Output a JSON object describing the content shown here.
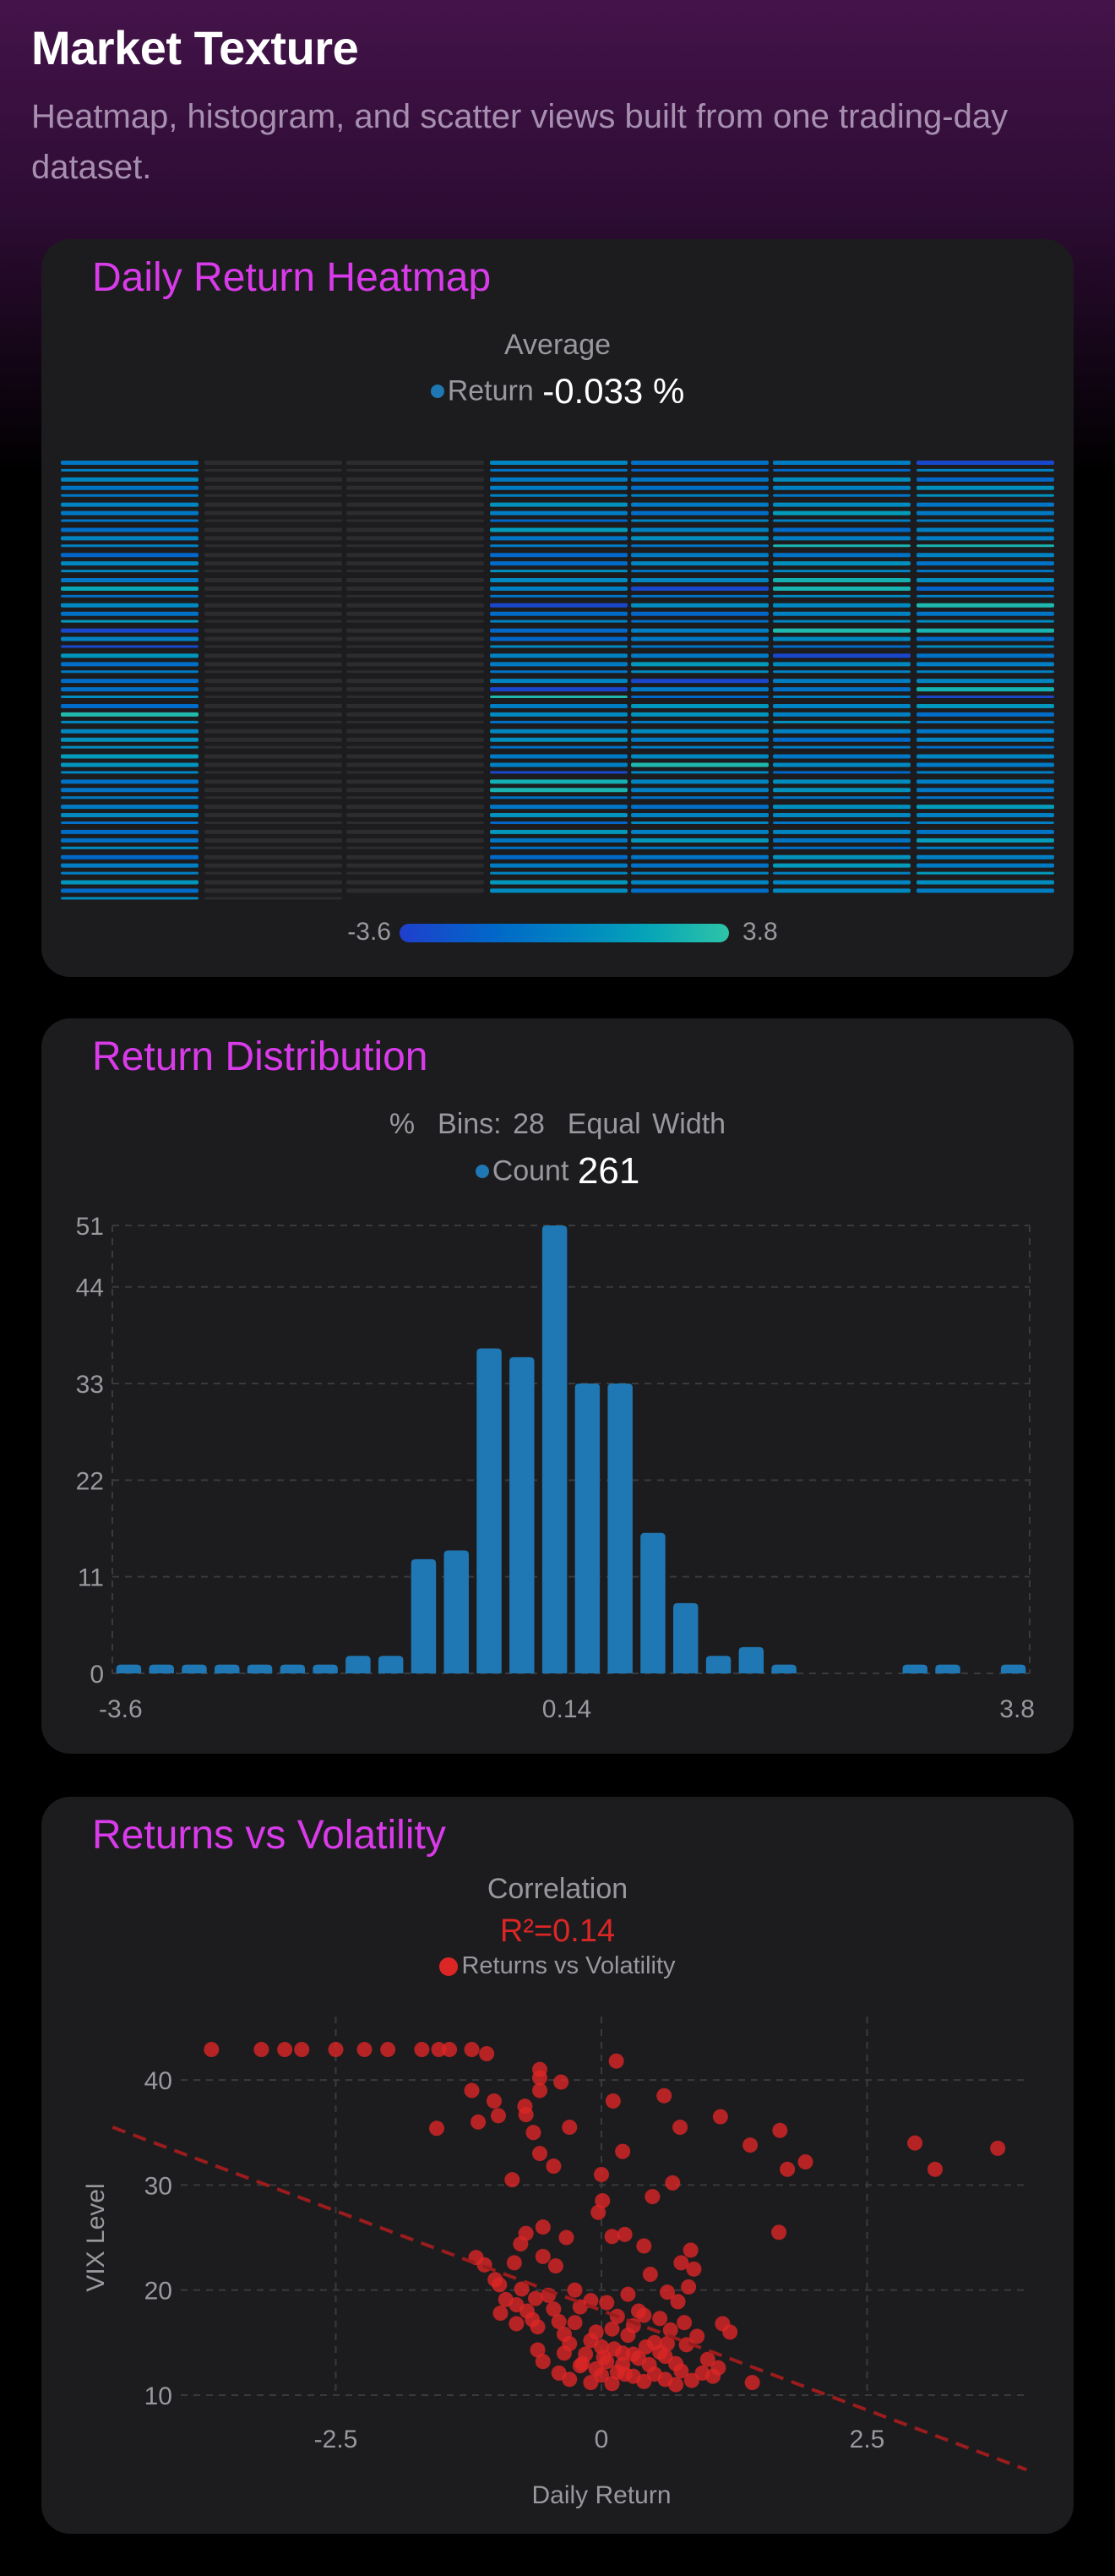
{
  "header": {
    "title": "Market Texture",
    "subtitle": "Heatmap, histogram, and scatter views built from one trading-day dataset."
  },
  "heatmap_card": {
    "title": "Daily Return Heatmap",
    "stat_label": "Average",
    "legend_label": "Return",
    "stat_value": "-0.033 %",
    "legend_color": "#1f77b4",
    "colorbar": {
      "min_label": "-3.6",
      "max_label": "3.8",
      "start_color": "#1f3fcc",
      "mid_color": "#0077c2",
      "end_color": "#2ec4a8"
    },
    "empty_color": "#2c2c2e"
  },
  "histogram_card": {
    "title": "Return Distribution",
    "subtitle": "%  Bins: 28  Equal Width",
    "legend_label": "Count",
    "legend_value": "261",
    "legend_color": "#1f77b4"
  },
  "scatter_card": {
    "title": "Returns vs Volatility",
    "stat_label": "Correlation",
    "r2_label": "R²=0.14",
    "legend_label": "Returns vs Volatility",
    "point_color": "#dc2626",
    "trend_color": "#9b1c1c"
  },
  "chart_data": [
    {
      "type": "heatmap",
      "title": "Daily Return Heatmap",
      "subtitle": "Average Return -0.033 %",
      "columns": 7,
      "rows_per_column": 53,
      "empty_columns": [
        2,
        3
      ],
      "value_range": [
        -3.6,
        3.8
      ],
      "colorbar_labels": [
        "-3.6",
        "3.8"
      ],
      "note": "Each column is a stack of horizontal day-bars colored by daily return; columns 2 and 3 have no data (gray). Most cells fall in -1 to +1 (mid-blue); a few teal highlights (~+2.5 to +3.8) and deep-blue lows (~-3)."
    },
    {
      "type": "bar",
      "title": "Return Distribution",
      "subtitle": "%  Bins: 28  Equal Width",
      "legend": [
        "Count"
      ],
      "total": 261,
      "x_range": [
        -3.6,
        3.8
      ],
      "x_tick_labels": [
        "-3.6",
        "0.14",
        "3.8"
      ],
      "y_ticks": [
        0,
        11,
        22,
        33,
        44,
        51
      ],
      "ylim": [
        0,
        51
      ],
      "grid": true,
      "values": [
        1,
        1,
        1,
        1,
        1,
        1,
        1,
        2,
        2,
        13,
        14,
        37,
        36,
        51,
        33,
        33,
        16,
        8,
        2,
        3,
        1,
        0,
        0,
        0,
        1,
        1,
        0,
        1
      ]
    },
    {
      "type": "scatter",
      "title": "Returns vs Volatility",
      "subtitle": "Correlation R²=0.14",
      "legend": [
        "Returns vs Volatility"
      ],
      "xlabel": "Daily Return",
      "ylabel": "VIX Level",
      "x_ticks": [
        -2.5,
        0,
        2.5
      ],
      "y_ticks": [
        10,
        20,
        30,
        40
      ],
      "xlim": [
        -4.6,
        4.0
      ],
      "ylim": [
        8.5,
        45
      ],
      "grid": true,
      "trendline": {
        "x": [
          -4.6,
          4.0
        ],
        "y": [
          35.5,
          2.9
        ],
        "style": "dashed"
      },
      "points": [
        [
          -3.67,
          42.9
        ],
        [
          -3.2,
          42.9
        ],
        [
          -2.98,
          42.9
        ],
        [
          -2.82,
          42.9
        ],
        [
          -2.5,
          42.9
        ],
        [
          -2.23,
          42.9
        ],
        [
          -2.01,
          42.9
        ],
        [
          -1.69,
          42.9
        ],
        [
          -1.53,
          42.9
        ],
        [
          -1.43,
          42.9
        ],
        [
          -1.22,
          42.9
        ],
        [
          -1.08,
          42.5
        ],
        [
          -0.58,
          41.0
        ],
        [
          -0.58,
          40.2
        ],
        [
          -0.38,
          39.8
        ],
        [
          -0.58,
          39.0
        ],
        [
          0.14,
          41.8
        ],
        [
          0.11,
          38.0
        ],
        [
          0.59,
          38.5
        ],
        [
          1.12,
          36.5
        ],
        [
          -1.22,
          39.0
        ],
        [
          -1.01,
          38.0
        ],
        [
          -0.72,
          37.5
        ],
        [
          -0.71,
          36.7
        ],
        [
          -0.97,
          36.6
        ],
        [
          -1.16,
          36.0
        ],
        [
          -1.55,
          35.4
        ],
        [
          -0.64,
          35.0
        ],
        [
          -0.3,
          35.5
        ],
        [
          0.74,
          35.5
        ],
        [
          1.68,
          35.2
        ],
        [
          2.95,
          34.0
        ],
        [
          1.92,
          32.2
        ],
        [
          3.73,
          33.5
        ],
        [
          3.14,
          31.5
        ],
        [
          1.75,
          31.5
        ],
        [
          1.4,
          33.8
        ],
        [
          0.67,
          30.2
        ],
        [
          -0.58,
          33.0
        ],
        [
          0.2,
          33.2
        ],
        [
          0.0,
          31.0
        ],
        [
          -0.84,
          30.5
        ],
        [
          -0.45,
          31.8
        ],
        [
          0.01,
          28.5
        ],
        [
          -0.03,
          27.4
        ],
        [
          0.48,
          28.9
        ],
        [
          1.67,
          25.5
        ],
        [
          0.84,
          23.8
        ],
        [
          0.75,
          22.6
        ],
        [
          0.46,
          21.5
        ],
        [
          0.62,
          19.8
        ],
        [
          -1.18,
          23.1
        ],
        [
          -1.1,
          22.4
        ],
        [
          -1.0,
          21.0
        ],
        [
          -0.96,
          20.5
        ],
        [
          -0.82,
          22.6
        ],
        [
          -0.71,
          25.4
        ],
        [
          -0.55,
          26.0
        ],
        [
          -0.33,
          25.0
        ],
        [
          -0.55,
          23.2
        ],
        [
          -0.43,
          22.3
        ],
        [
          -0.76,
          24.4
        ],
        [
          0.1,
          25.1
        ],
        [
          0.22,
          25.3
        ],
        [
          0.4,
          24.2
        ],
        [
          0.87,
          22.0
        ],
        [
          0.82,
          20.3
        ],
        [
          1.14,
          16.8
        ],
        [
          1.21,
          16.0
        ],
        [
          1.42,
          11.2
        ],
        [
          1.05,
          11.8
        ],
        [
          -0.9,
          19.1
        ],
        [
          -0.8,
          18.6
        ],
        [
          -0.7,
          18.0
        ],
        [
          -0.65,
          17.2
        ],
        [
          -0.6,
          16.5
        ],
        [
          -0.5,
          19.5
        ],
        [
          -0.45,
          18.2
        ],
        [
          -0.4,
          17.0
        ],
        [
          -0.35,
          15.8
        ],
        [
          -0.3,
          14.9
        ],
        [
          -0.25,
          16.9
        ],
        [
          -0.2,
          18.4
        ],
        [
          -0.15,
          13.9
        ],
        [
          -0.1,
          15.2
        ],
        [
          -0.05,
          12.5
        ],
        [
          0.0,
          14.6
        ],
        [
          0.05,
          13.2
        ],
        [
          0.1,
          16.3
        ],
        [
          0.15,
          12.2
        ],
        [
          0.2,
          14.0
        ],
        [
          0.25,
          15.7
        ],
        [
          0.3,
          11.8
        ],
        [
          0.35,
          13.5
        ],
        [
          0.4,
          17.6
        ],
        [
          0.45,
          12.9
        ],
        [
          0.5,
          15.0
        ],
        [
          0.55,
          14.1
        ],
        [
          0.6,
          11.5
        ],
        [
          0.65,
          16.2
        ],
        [
          0.7,
          13.0
        ],
        [
          0.75,
          12.3
        ],
        [
          0.8,
          14.8
        ],
        [
          0.9,
          15.6
        ],
        [
          1.0,
          13.4
        ],
        [
          1.1,
          12.6
        ],
        [
          -0.6,
          14.3
        ],
        [
          -0.55,
          13.2
        ],
        [
          -0.4,
          12.1
        ],
        [
          -0.3,
          11.5
        ],
        [
          -0.2,
          12.8
        ],
        [
          -0.1,
          11.2
        ],
        [
          0.0,
          11.9
        ],
        [
          0.1,
          11.1
        ],
        [
          0.2,
          12.9
        ],
        [
          0.3,
          13.9
        ],
        [
          0.4,
          11.3
        ],
        [
          0.5,
          12.0
        ],
        [
          0.6,
          13.7
        ],
        [
          0.7,
          11.0
        ],
        [
          0.85,
          11.4
        ],
        [
          0.95,
          12.1
        ],
        [
          -0.8,
          16.8
        ],
        [
          -0.95,
          17.8
        ],
        [
          -0.75,
          20.1
        ],
        [
          -0.62,
          19.2
        ],
        [
          -0.25,
          20.0
        ],
        [
          -0.1,
          19.0
        ],
        [
          0.05,
          18.8
        ],
        [
          0.25,
          19.6
        ],
        [
          0.35,
          18.0
        ],
        [
          0.55,
          17.3
        ],
        [
          0.72,
          18.9
        ],
        [
          0.15,
          17.5
        ],
        [
          -0.05,
          16.0
        ],
        [
          0.3,
          16.6
        ],
        [
          -0.35,
          14.0
        ],
        [
          0.12,
          14.4
        ],
        [
          0.42,
          14.6
        ],
        [
          0.62,
          14.9
        ],
        [
          0.78,
          16.9
        ],
        [
          -0.18,
          13.0
        ],
        [
          0.02,
          13.6
        ],
        [
          0.22,
          12.0
        ]
      ]
    }
  ]
}
